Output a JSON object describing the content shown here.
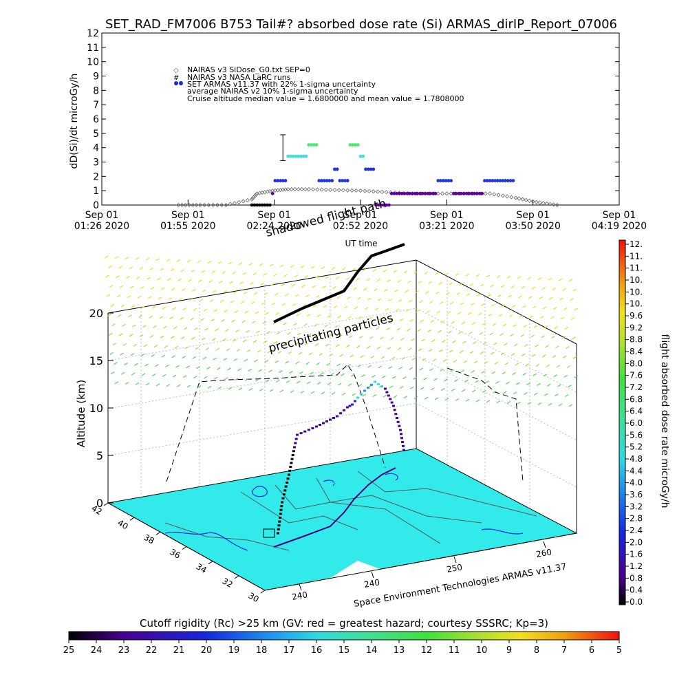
{
  "title": "SET_RAD_FM7006  B753 Tail#? absorbed dose rate (Si) ARMAS_dirIP_Report_07006",
  "top_chart": {
    "ylabel": "dD(Si)/dt microGy/h",
    "xlabel": "UT time",
    "yticks": [
      "0",
      "1",
      "2",
      "3",
      "4",
      "5",
      "6",
      "7",
      "8",
      "9",
      "10",
      "11",
      "12"
    ],
    "xticks": [
      {
        "d": "Sep 01",
        "t": "01:26 2020"
      },
      {
        "d": "Sep 01",
        "t": "01:55 2020"
      },
      {
        "d": "Sep 01",
        "t": "02:24 2020"
      },
      {
        "d": "Sep 01",
        "t": "02:52 2020"
      },
      {
        "d": "Sep 01",
        "t": "03:21 2020"
      },
      {
        "d": "Sep 01",
        "t": "03:50 2020"
      },
      {
        "d": "Sep 01",
        "t": "04:19 2020"
      }
    ],
    "legend": [
      "NAIRAS v3 SiDose_G0.txt SEP=0",
      "NAIRAS v3 NASA LaRC runs",
      "SET ARMAS v11.37 with 22% 1-sigma uncertainty",
      "average NAIRAS v2 10% 1-sigma uncertainty",
      "Cruise altitude median value = 1.6800000 and mean value = 1.7808000"
    ],
    "overlay_labels": [
      "shadowed flight path",
      "fright"
    ]
  },
  "chart_data": {
    "type": "scatter",
    "title": "SET_RAD_FM7006  B753 Tail#? absorbed dose rate (Si) ARMAS_dirIP_Report_07006",
    "xlabel": "UT time",
    "ylabel": "dD(Si)/dt microGy/h",
    "xlim": [
      0,
      1
    ],
    "ylim": [
      0,
      12
    ],
    "series": [
      {
        "name": "NAIRAS v3 SiDose_G0.txt SEP=0",
        "x": [
          0.148,
          0.19,
          0.24,
          0.29,
          0.3,
          0.33,
          0.36,
          0.4,
          0.45,
          0.5,
          0.55,
          0.6,
          0.65,
          0.7,
          0.75,
          0.8,
          0.84,
          0.88
        ],
        "y": [
          0,
          0,
          0,
          0.4,
          0.8,
          1.0,
          1.1,
          1.1,
          1.05,
          1.0,
          0.9,
          0.8,
          0.8,
          0.8,
          0.8,
          0.5,
          0.2,
          0
        ]
      },
      {
        "name": "SET ARMAS v11.37 with 22% 1-sigma uncertainty",
        "x": [
          0.29,
          0.33,
          0.335,
          0.36,
          0.37,
          0.4,
          0.41,
          0.42,
          0.44,
          0.45,
          0.46,
          0.48,
          0.5,
          0.51,
          0.53,
          0.56,
          0.6,
          0.64,
          0.65,
          0.68,
          0.72,
          0.74,
          0.76,
          0.8
        ],
        "y": [
          0,
          0.8,
          1.7,
          3.4,
          3.4,
          4.2,
          4.2,
          1.7,
          1.7,
          2.5,
          1.7,
          4.2,
          3.4,
          2.5,
          0,
          0.8,
          0.8,
          0.8,
          1.7,
          0.8,
          0.8,
          1.7,
          1.7,
          0
        ],
        "colors": [
          "#000000",
          "#5a00a0",
          "#1e2bd8",
          "#3fe0d8",
          "#3fe0d8",
          "#4de870",
          "#4de870",
          "#2030d8",
          "#2030d8",
          "#2030d8",
          "#2030d8",
          "#4de870",
          "#3fe0d8",
          "#2030d8",
          "#5a00a0",
          "#5a00a0",
          "#5a00a0",
          "#5a00a0",
          "#2030d8",
          "#5a00a0",
          "#5a00a0",
          "#2030d8",
          "#2030d8",
          "#5a00a0"
        ]
      }
    ],
    "errorbar": {
      "x": 0.35,
      "y": 3.4,
      "lo": 3.1,
      "hi": 4.9
    },
    "scene3d": {
      "zlabel": "Altitude (km)",
      "zticks": [
        "0",
        "5",
        "10",
        "15",
        "20"
      ],
      "lat_ticks": [
        "42",
        "40",
        "38",
        "36",
        "34",
        "32",
        "30"
      ],
      "lon_ticks": [
        "240",
        "240",
        "250",
        "260"
      ],
      "labels": [
        "precipitating particles",
        "Space Environment Technologies ARMAS v11.37"
      ]
    },
    "colorbar_right": {
      "title": "flight absorbed dose rate microGy/h",
      "ticks": [
        "12.",
        "11.",
        "11.",
        "10.",
        "10.",
        "10.",
        "9.6",
        "9.2",
        "8.8",
        "8.4",
        "8.0",
        "7.6",
        "7.2",
        "6.8",
        "6.4",
        "6.0",
        "5.6",
        "5.2",
        "4.8",
        "4.4",
        "4.0",
        "3.6",
        "3.2",
        "2.8",
        "2.4",
        "2.0",
        "1.6",
        "1.2",
        "0.8",
        "0.4",
        "0.0"
      ]
    },
    "colorbar_bottom": {
      "title": "Cutoff rigidity (Rc) >25 km (GV: red = greatest hazard; courtesy SSSRC; Kp=3)",
      "ticks": [
        "25",
        "24",
        "23",
        "22",
        "21",
        "20",
        "19",
        "18",
        "17",
        "16",
        "15",
        "14",
        "13",
        "12",
        "11",
        "10",
        "9",
        "8",
        "7",
        "6",
        "5"
      ]
    }
  }
}
